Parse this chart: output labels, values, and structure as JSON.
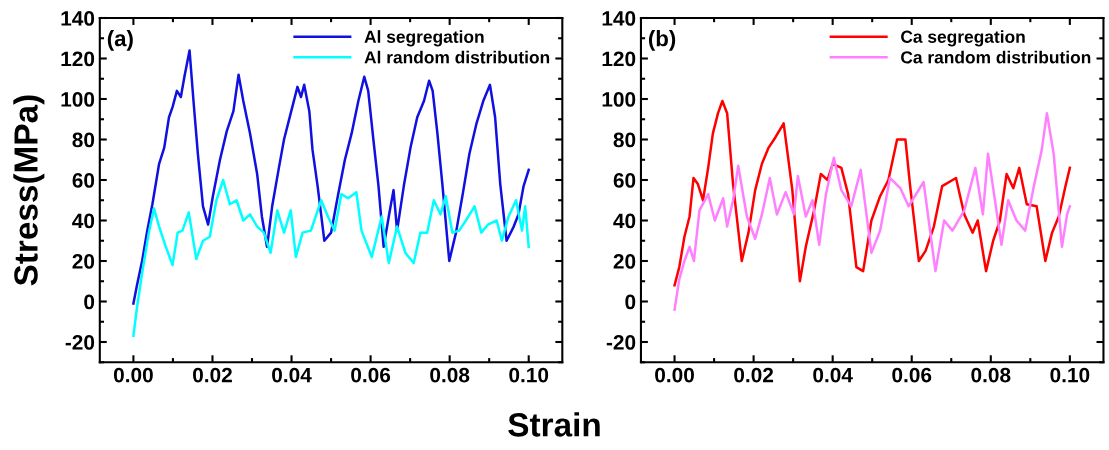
{
  "chart_data": [
    {
      "type": "line",
      "ylabel": "Stress(MPa)",
      "xlabel": "Strain",
      "annotations": [
        "(a)"
      ],
      "xlim": [
        -0.0085,
        0.1085
      ],
      "ylim": [
        -30,
        140
      ],
      "xticks": [
        {
          "value": 0,
          "label": "0.00"
        },
        {
          "value": 0.02,
          "label": "0.02"
        },
        {
          "value": 0.04,
          "label": "0.04"
        },
        {
          "value": 0.06,
          "label": "0.06"
        },
        {
          "value": 0.08,
          "label": "0.08"
        },
        {
          "value": 0.1,
          "label": "0.10"
        }
      ],
      "yticks": [
        -20,
        0,
        20,
        40,
        60,
        80,
        100,
        120,
        140
      ],
      "legend": "top right",
      "grid": false,
      "marker": "none",
      "line_style": "solid",
      "series": [
        {
          "name": "Al segregation",
          "color": "#1010e0",
          "x": [
            0,
            0.0009,
            0.0022,
            0.0035,
            0.0048,
            0.0065,
            0.0078,
            0.009,
            0.0099,
            0.011,
            0.012,
            0.0129,
            0.0142,
            0.0152,
            0.0163,
            0.0176,
            0.0189,
            0.0201,
            0.0219,
            0.0236,
            0.0253,
            0.0266,
            0.0278,
            0.0295,
            0.0313,
            0.0325,
            0.0338,
            0.0351,
            0.0368,
            0.0381,
            0.0398,
            0.0415,
            0.0424,
            0.0432,
            0.0445,
            0.0453,
            0.0466,
            0.0483,
            0.05,
            0.0518,
            0.0535,
            0.0552,
            0.0569,
            0.0584,
            0.0594,
            0.0607,
            0.062,
            0.0633,
            0.0646,
            0.0658,
            0.0667,
            0.0684,
            0.0701,
            0.0718,
            0.0735,
            0.0748,
            0.0757,
            0.0769,
            0.0782,
            0.0799,
            0.0816,
            0.0833,
            0.085,
            0.0868,
            0.0885,
            0.0902,
            0.0915,
            0.0928,
            0.0944,
            0.0962,
            0.0974,
            0.0987,
            0.1
          ],
          "values": [
            -1,
            8,
            20,
            35,
            48,
            68,
            76,
            91,
            96,
            104,
            101,
            111,
            124,
            99,
            73,
            47,
            38,
            52,
            70,
            84,
            94,
            112,
            99,
            83,
            63,
            42,
            27,
            47,
            66,
            80,
            93,
            106,
            101,
            107,
            94,
            75,
            57,
            30,
            34,
            53,
            70,
            83,
            99,
            111,
            104,
            80,
            57,
            27,
            42,
            55,
            35,
            57,
            76,
            91,
            99,
            109,
            104,
            83,
            57,
            20,
            34,
            53,
            73,
            88,
            99,
            107,
            91,
            58,
            30,
            37,
            43,
            57,
            65
          ]
        },
        {
          "name": "Al random distribution",
          "color": "#00ffff",
          "x": [
            0,
            0.0009,
            0.0022,
            0.0039,
            0.0052,
            0.0065,
            0.0082,
            0.0099,
            0.0112,
            0.0124,
            0.014,
            0.0159,
            0.0176,
            0.0193,
            0.021,
            0.0227,
            0.0244,
            0.0261,
            0.0278,
            0.0295,
            0.0313,
            0.033,
            0.0347,
            0.0364,
            0.0381,
            0.0398,
            0.0411,
            0.0428,
            0.0449,
            0.0475,
            0.0492,
            0.0509,
            0.0526,
            0.0543,
            0.0564,
            0.0577,
            0.0603,
            0.0628,
            0.0646,
            0.0667,
            0.0688,
            0.0709,
            0.0726,
            0.0743,
            0.076,
            0.0777,
            0.079,
            0.0807,
            0.0824,
            0.0841,
            0.0863,
            0.088,
            0.0897,
            0.0919,
            0.0932,
            0.0949,
            0.0968,
            0.0983,
            0.0991,
            0.1
          ],
          "values": [
            -17,
            -3,
            14,
            34,
            46,
            37,
            27,
            18,
            34,
            35,
            44,
            21,
            30,
            32,
            50,
            60,
            48,
            50,
            40,
            43,
            37,
            34,
            24,
            45,
            34,
            45,
            22,
            34,
            35,
            50,
            42,
            35,
            53,
            51,
            54,
            35,
            22,
            42,
            19,
            37,
            24,
            19,
            34,
            34,
            50,
            43,
            52,
            34,
            35,
            40,
            47,
            34,
            38,
            40,
            30,
            42,
            50,
            35,
            47,
            27
          ]
        }
      ]
    },
    {
      "type": "line",
      "annotations": [
        "(b)"
      ],
      "xlim": [
        -0.0085,
        0.1085
      ],
      "ylim": [
        -30,
        140
      ],
      "xticks": [
        {
          "value": 0,
          "label": "0.00"
        },
        {
          "value": 0.02,
          "label": "0.02"
        },
        {
          "value": 0.04,
          "label": "0.04"
        },
        {
          "value": 0.06,
          "label": "0.06"
        },
        {
          "value": 0.08,
          "label": "0.08"
        },
        {
          "value": 0.1,
          "label": "0.10"
        }
      ],
      "yticks": [
        -20,
        0,
        20,
        40,
        60,
        80,
        100,
        120,
        140
      ],
      "legend": "top right",
      "grid": false,
      "marker": "none",
      "line_style": "solid",
      "series": [
        {
          "name": "Ca segregation",
          "color": "#ff0000",
          "x": [
            0,
            0.0012,
            0.0025,
            0.0038,
            0.0048,
            0.0059,
            0.0072,
            0.0085,
            0.0097,
            0.011,
            0.0121,
            0.0133,
            0.0148,
            0.017,
            0.0187,
            0.0204,
            0.0221,
            0.0238,
            0.0255,
            0.0276,
            0.0298,
            0.0317,
            0.0332,
            0.0353,
            0.037,
            0.0387,
            0.04,
            0.0422,
            0.0439,
            0.046,
            0.0477,
            0.0498,
            0.052,
            0.0541,
            0.0563,
            0.0584,
            0.0596,
            0.0618,
            0.0635,
            0.0656,
            0.0677,
            0.0712,
            0.0733,
            0.0754,
            0.0767,
            0.0788,
            0.0806,
            0.0823,
            0.084,
            0.0857,
            0.0872,
            0.0891,
            0.0916,
            0.0938,
            0.0955,
            0.0972,
            0.0989,
            0.1
          ],
          "values": [
            8,
            17,
            32,
            42,
            61,
            58,
            50,
            66,
            83,
            93,
            99,
            93,
            58,
            20,
            34,
            55,
            68,
            76,
            81,
            88,
            55,
            10,
            27,
            45,
            63,
            60,
            68,
            66,
            53,
            17,
            15,
            40,
            52,
            60,
            80,
            80,
            57,
            20,
            25,
            37,
            57,
            61,
            43,
            34,
            40,
            15,
            30,
            40,
            63,
            56,
            66,
            48,
            47,
            20,
            34,
            42,
            57,
            66
          ]
        },
        {
          "name": "Ca random distribution",
          "color": "#ff80ff",
          "x": [
            0,
            0.0012,
            0.0025,
            0.0038,
            0.0049,
            0.0063,
            0.0085,
            0.0102,
            0.0123,
            0.0133,
            0.0148,
            0.0161,
            0.0183,
            0.0204,
            0.0221,
            0.0241,
            0.0259,
            0.0281,
            0.0302,
            0.0312,
            0.0332,
            0.0349,
            0.0366,
            0.0383,
            0.0403,
            0.0422,
            0.0447,
            0.0471,
            0.0498,
            0.052,
            0.0545,
            0.0571,
            0.0592,
            0.063,
            0.066,
            0.0682,
            0.0703,
            0.0733,
            0.0761,
            0.078,
            0.0793,
            0.0806,
            0.0827,
            0.0844,
            0.0865,
            0.0887,
            0.0908,
            0.0929,
            0.0942,
            0.0959,
            0.098,
            0.0993,
            0.1
          ],
          "values": [
            -4,
            11,
            20,
            27,
            20,
            45,
            53,
            40,
            51,
            37,
            50,
            67,
            42,
            31,
            43,
            61,
            43,
            54,
            43,
            62,
            42,
            50,
            28,
            53,
            71,
            55,
            47,
            65,
            24,
            35,
            61,
            56,
            47,
            59,
            15,
            40,
            35,
            45,
            66,
            43,
            73,
            56,
            28,
            50,
            40,
            35,
            56,
            75,
            93,
            73,
            27,
            43,
            47
          ]
        }
      ]
    }
  ]
}
